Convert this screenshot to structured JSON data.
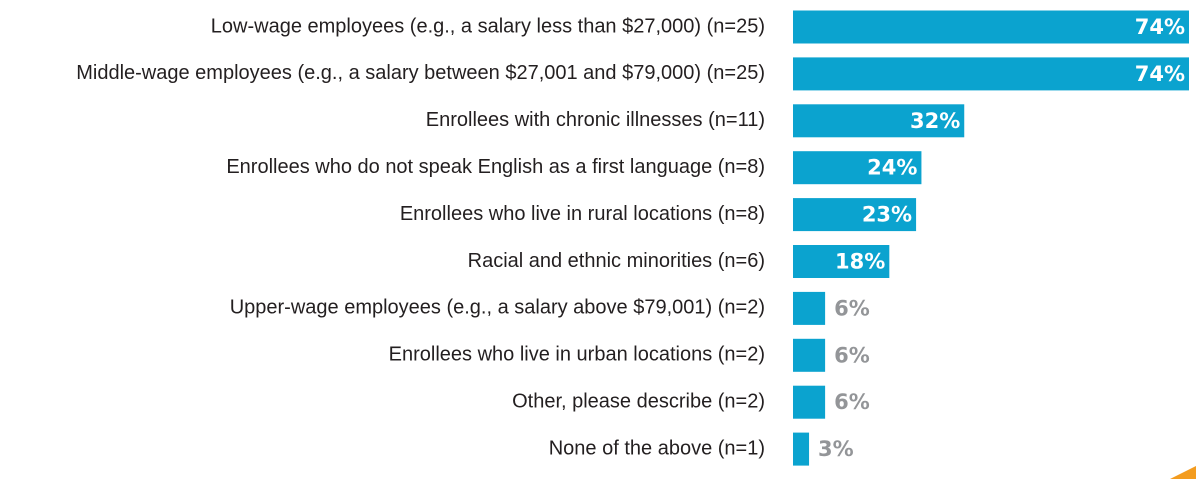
{
  "chart_data": {
    "type": "bar",
    "orientation": "horizontal",
    "categories": [
      "Low-wage employees (e.g., a salary less than $27,000) (n=25)",
      "Middle-wage employees (e.g., a salary between $27,001 and $79,000) (n=25)",
      "Enrollees with chronic illnesses (n=11)",
      "Enrollees who do not speak English as a first language (n=8)",
      "Enrollees who live in rural locations (n=8)",
      "Racial and ethnic minorities (n=6)",
      "Upper-wage employees (e.g., a salary above $79,001) (n=2)",
      "Enrollees who live in urban locations (n=2)",
      "Other, please describe (n=2)",
      "None of the above (n=1)"
    ],
    "values": [
      74,
      74,
      32,
      24,
      23,
      18,
      6,
      6,
      6,
      3
    ],
    "value_labels": [
      "74%",
      "74%",
      "32%",
      "24%",
      "23%",
      "18%",
      "6%",
      "6%",
      "6%",
      "3%"
    ],
    "color": "#0ba3cf"
  }
}
